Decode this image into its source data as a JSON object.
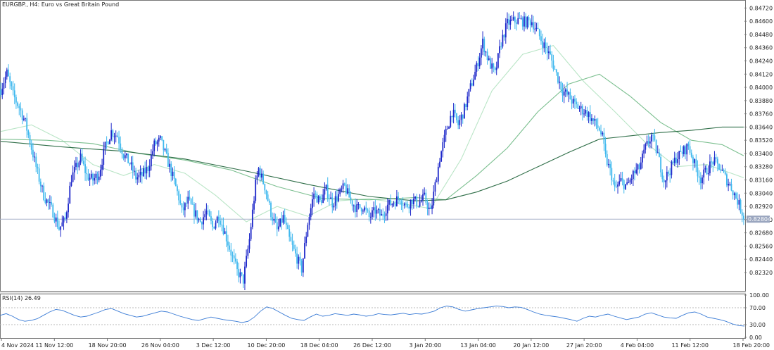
{
  "colors": {
    "background": "#ffffff",
    "bull_candle": "#1d27c9",
    "bear_candle": "#3fb8ee",
    "price_line": "#aab4cc",
    "price_tag_bg": "#9aa6bf",
    "rsi_line": "#3a7bd5",
    "rsi_level_line": "#b8b8b8",
    "ma_fast": "#b9e5c6",
    "ma_mid": "#7bbf8f",
    "ma_slow": "#2f6e48"
  },
  "chart_data": [
    {
      "type": "candlestick",
      "title": "EURGBP., H4:  Euro vs Great Britain Pound",
      "ylim": [
        0.8216,
        0.8478
      ],
      "y_ticks": [
        "0.84720",
        "0.84600",
        "0.84480",
        "0.84360",
        "0.84240",
        "0.84120",
        "0.84000",
        "0.83880",
        "0.83760",
        "0.83640",
        "0.83520",
        "0.83400",
        "0.83280",
        "0.83160",
        "0.83040",
        "0.82920",
        "0.82800",
        "0.82680",
        "0.82560",
        "0.82440",
        "0.82320"
      ],
      "current_price": "0.82804",
      "current_price_value": 0.82804,
      "path_points": [
        [
          0,
          0.8398
        ],
        [
          4,
          0.8413
        ],
        [
          8,
          0.8393
        ],
        [
          12,
          0.8382
        ],
        [
          16,
          0.8368
        ],
        [
          20,
          0.8345
        ],
        [
          24,
          0.8322
        ],
        [
          28,
          0.8302
        ],
        [
          34,
          0.8287
        ],
        [
          38,
          0.8272
        ],
        [
          42,
          0.828
        ],
        [
          46,
          0.8318
        ],
        [
          52,
          0.8336
        ],
        [
          56,
          0.832
        ],
        [
          60,
          0.8316
        ],
        [
          64,
          0.8322
        ],
        [
          68,
          0.8346
        ],
        [
          72,
          0.836
        ],
        [
          76,
          0.8356
        ],
        [
          80,
          0.8339
        ],
        [
          84,
          0.8331
        ],
        [
          88,
          0.8318
        ],
        [
          92,
          0.832
        ],
        [
          96,
          0.8327
        ],
        [
          100,
          0.8348
        ],
        [
          104,
          0.8352
        ],
        [
          108,
          0.8336
        ],
        [
          112,
          0.8319
        ],
        [
          116,
          0.83
        ],
        [
          118,
          0.8287
        ],
        [
          122,
          0.8297
        ],
        [
          126,
          0.8287
        ],
        [
          130,
          0.8278
        ],
        [
          134,
          0.8287
        ],
        [
          138,
          0.8273
        ],
        [
          142,
          0.8284
        ],
        [
          146,
          0.8268
        ],
        [
          150,
          0.825
        ],
        [
          154,
          0.8233
        ],
        [
          158,
          0.8225
        ],
        [
          162,
          0.8262
        ],
        [
          166,
          0.8312
        ],
        [
          168,
          0.8326
        ],
        [
          172,
          0.831
        ],
        [
          176,
          0.8286
        ],
        [
          180,
          0.827
        ],
        [
          184,
          0.8282
        ],
        [
          188,
          0.8262
        ],
        [
          192,
          0.8248
        ],
        [
          196,
          0.8235
        ],
        [
          200,
          0.8277
        ],
        [
          204,
          0.8304
        ],
        [
          208,
          0.8296
        ],
        [
          212,
          0.8307
        ],
        [
          216,
          0.8295
        ],
        [
          220,
          0.8302
        ],
        [
          224,
          0.831
        ],
        [
          228,
          0.8297
        ],
        [
          232,
          0.829
        ],
        [
          236,
          0.8292
        ],
        [
          240,
          0.8282
        ],
        [
          244,
          0.8288
        ],
        [
          248,
          0.8283
        ],
        [
          252,
          0.8293
        ],
        [
          256,
          0.8296
        ],
        [
          260,
          0.83
        ],
        [
          264,
          0.8292
        ],
        [
          268,
          0.8298
        ],
        [
          272,
          0.8295
        ],
        [
          276,
          0.83
        ],
        [
          280,
          0.8286
        ],
        [
          282,
          0.8303
        ],
        [
          286,
          0.8336
        ],
        [
          290,
          0.8359
        ],
        [
          294,
          0.8378
        ],
        [
          298,
          0.8366
        ],
        [
          302,
          0.838
        ],
        [
          306,
          0.84
        ],
        [
          310,
          0.8418
        ],
        [
          314,
          0.8441
        ],
        [
          318,
          0.8423
        ],
        [
          322,
          0.8412
        ],
        [
          326,
          0.8441
        ],
        [
          330,
          0.8458
        ],
        [
          334,
          0.846
        ],
        [
          338,
          0.8461
        ],
        [
          342,
          0.8459
        ],
        [
          346,
          0.846
        ],
        [
          350,
          0.8449
        ],
        [
          354,
          0.8438
        ],
        [
          358,
          0.8428
        ],
        [
          362,
          0.8412
        ],
        [
          366,
          0.8397
        ],
        [
          370,
          0.8392
        ],
        [
          374,
          0.8384
        ],
        [
          378,
          0.838
        ],
        [
          382,
          0.8377
        ],
        [
          386,
          0.8369
        ],
        [
          390,
          0.8362
        ],
        [
          392,
          0.8354
        ],
        [
          394,
          0.8336
        ],
        [
          398,
          0.832
        ],
        [
          400,
          0.8307
        ],
        [
          404,
          0.8315
        ],
        [
          408,
          0.831
        ],
        [
          412,
          0.8321
        ],
        [
          416,
          0.8327
        ],
        [
          420,
          0.8345
        ],
        [
          424,
          0.8356
        ],
        [
          428,
          0.8339
        ],
        [
          432,
          0.8316
        ],
        [
          436,
          0.8325
        ],
        [
          440,
          0.8336
        ],
        [
          444,
          0.8341
        ],
        [
          448,
          0.8347
        ],
        [
          452,
          0.833
        ],
        [
          456,
          0.8317
        ],
        [
          460,
          0.8325
        ],
        [
          464,
          0.8333
        ],
        [
          468,
          0.8328
        ],
        [
          472,
          0.8318
        ],
        [
          476,
          0.8309
        ],
        [
          480,
          0.8297
        ],
        [
          484,
          0.8283
        ]
      ],
      "moving_averages": [
        {
          "key": "ma_fast",
          "points": [
            [
              0,
              0.836
            ],
            [
              20,
              0.8366
            ],
            [
              40,
              0.8352
            ],
            [
              60,
              0.833
            ],
            [
              80,
              0.832
            ],
            [
              100,
              0.833
            ],
            [
              120,
              0.8322
            ],
            [
              140,
              0.8302
            ],
            [
              160,
              0.8278
            ],
            [
              180,
              0.8292
            ],
            [
              200,
              0.8283
            ],
            [
              220,
              0.8297
            ],
            [
              240,
              0.8299
            ],
            [
              260,
              0.8295
            ],
            [
              280,
              0.829
            ],
            [
              300,
              0.8335
            ],
            [
              320,
              0.8397
            ],
            [
              340,
              0.843
            ],
            [
              360,
              0.8438
            ],
            [
              380,
              0.8405
            ],
            [
              400,
              0.8378
            ],
            [
              420,
              0.835
            ],
            [
              440,
              0.8328
            ],
            [
              460,
              0.833
            ],
            [
              484,
              0.8318
            ]
          ]
        },
        {
          "key": "ma_mid",
          "points": [
            [
              0,
              0.8353
            ],
            [
              30,
              0.8352
            ],
            [
              60,
              0.8349
            ],
            [
              90,
              0.834
            ],
            [
              120,
              0.8334
            ],
            [
              150,
              0.8325
            ],
            [
              180,
              0.831
            ],
            [
              210,
              0.8299
            ],
            [
              240,
              0.8298
            ],
            [
              270,
              0.83
            ],
            [
              290,
              0.8298
            ],
            [
              310,
              0.832
            ],
            [
              330,
              0.8345
            ],
            [
              350,
              0.8378
            ],
            [
              370,
              0.8403
            ],
            [
              390,
              0.8412
            ],
            [
              410,
              0.8392
            ],
            [
              430,
              0.8368
            ],
            [
              450,
              0.8352
            ],
            [
              470,
              0.8348
            ],
            [
              484,
              0.8338
            ]
          ]
        },
        {
          "key": "ma_slow",
          "points": [
            [
              0,
              0.8351
            ],
            [
              40,
              0.8346
            ],
            [
              80,
              0.8342
            ],
            [
              120,
              0.8335
            ],
            [
              160,
              0.8324
            ],
            [
              200,
              0.8312
            ],
            [
              240,
              0.8301
            ],
            [
              270,
              0.8297
            ],
            [
              290,
              0.8298
            ],
            [
              310,
              0.8305
            ],
            [
              330,
              0.8315
            ],
            [
              350,
              0.8328
            ],
            [
              370,
              0.8341
            ],
            [
              390,
              0.8353
            ],
            [
              410,
              0.8356
            ],
            [
              430,
              0.8359
            ],
            [
              450,
              0.8361
            ],
            [
              470,
              0.8364
            ],
            [
              484,
              0.8364
            ]
          ]
        }
      ]
    },
    {
      "type": "line",
      "title": "RSI(14) 26.49",
      "ylim": [
        0,
        100
      ],
      "y_ticks": [
        "100.00",
        "70.00",
        "30.00",
        "0.00"
      ],
      "levels": [
        70,
        30
      ],
      "x_labels": [
        "4 Nov 2024",
        "11 Nov 12:00",
        "18 Nov 20:00",
        "26 Nov 04:00",
        "3 Dec 12:00",
        "10 Dec 20:00",
        "18 Dec 04:00",
        "26 Dec 12:00",
        "3 Jan 20:00",
        "13 Jan 04:00",
        "20 Jan 12:00",
        "27 Jan 20:00",
        "4 Feb 04:00",
        "11 Feb 12:00",
        "18 Feb 20:00"
      ],
      "values": [
        52,
        56,
        50,
        42,
        38,
        40,
        44,
        52,
        60,
        66,
        64,
        58,
        52,
        48,
        50,
        55,
        60,
        66,
        68,
        62,
        56,
        52,
        48,
        50,
        54,
        58,
        62,
        60,
        55,
        50,
        46,
        42,
        40,
        44,
        48,
        45,
        42,
        40,
        38,
        35,
        38,
        48,
        62,
        72,
        68,
        60,
        52,
        45,
        42,
        40,
        48,
        55,
        50,
        52,
        56,
        54,
        52,
        55,
        53,
        50,
        52,
        56,
        54,
        53,
        55,
        57,
        54,
        56,
        55,
        58,
        62,
        70,
        74,
        72,
        66,
        62,
        65,
        68,
        70,
        72,
        74,
        73,
        70,
        72,
        71,
        66,
        60,
        55,
        52,
        50,
        48,
        45,
        42,
        38,
        45,
        50,
        48,
        52,
        55,
        50,
        46,
        42,
        45,
        48,
        55,
        58,
        53,
        48,
        46,
        45,
        52,
        58,
        60,
        55,
        48,
        45,
        42,
        38,
        32,
        28,
        26.49
      ]
    }
  ]
}
